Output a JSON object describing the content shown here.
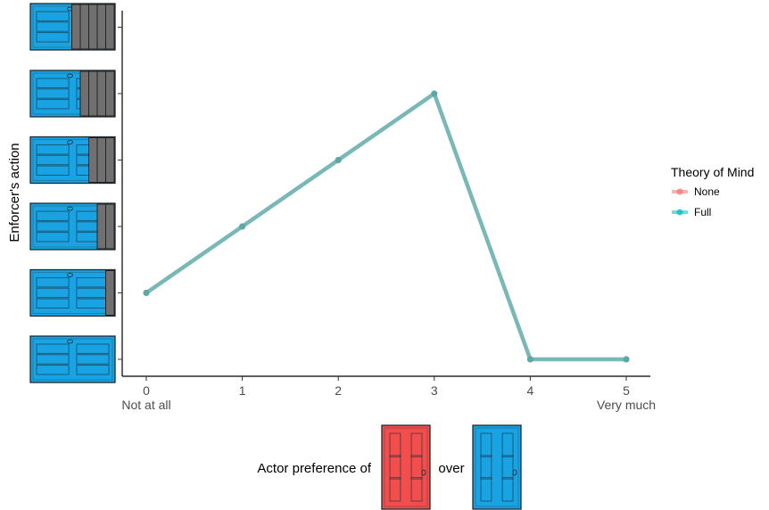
{
  "chart_data": {
    "type": "line",
    "xlabel": "Actor preference of",
    "xlabel_connector": "over",
    "ylabel": "Enforcer's action",
    "x": [
      0,
      1,
      2,
      3,
      4,
      5
    ],
    "x_tick_labels": [
      "0",
      "1",
      "2",
      "3",
      "4",
      "5"
    ],
    "x_end_labels": [
      "Not at all",
      "Very much"
    ],
    "y_levels": [
      0,
      1,
      2,
      3,
      4,
      5
    ],
    "y_tick_labels": [],
    "y_tick_images": "blue doors with 0 to 4 grey blocks covering them (level 0 at bottom)",
    "xlim": [
      0,
      5
    ],
    "ylim": [
      0,
      5
    ],
    "series": [
      {
        "name": "None",
        "color": "#F8766D",
        "values": [
          1,
          2,
          3,
          4,
          0,
          0
        ]
      },
      {
        "name": "Full",
        "color": "#00BFC4",
        "values": [
          1,
          2,
          3,
          4,
          0,
          0
        ]
      }
    ],
    "legend": {
      "title": "Theory of Mind",
      "position": "right"
    },
    "grid": false
  },
  "colors": {
    "door_blue": "#1aa3e3",
    "door_red": "#f24e4e",
    "block_grey": "#707070",
    "line_mix": "#7ab8b7"
  }
}
